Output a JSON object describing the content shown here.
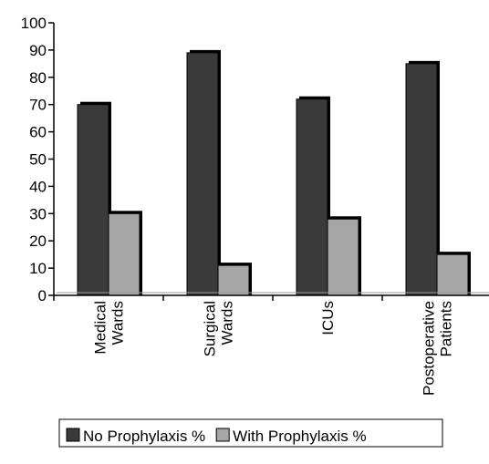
{
  "chart_data": {
    "type": "bar",
    "categories": [
      [
        "Medical",
        "Wards"
      ],
      [
        "Surgical",
        "Wards"
      ],
      [
        "ICUs"
      ],
      [
        "Postoperative",
        "Patients"
      ]
    ],
    "series": [
      {
        "name": "No Prophylaxis %",
        "values": [
          70,
          89,
          72,
          85
        ],
        "color": "#3a3a3a"
      },
      {
        "name": "With Prophylaxis %",
        "values": [
          30,
          11,
          28,
          15
        ],
        "color": "#a6a6a6"
      }
    ],
    "ylim": [
      0,
      100
    ],
    "yticks": [
      0,
      10,
      20,
      30,
      40,
      50,
      60,
      70,
      80,
      90,
      100
    ],
    "xlabel": "",
    "ylabel": "",
    "title": "",
    "legend_position": "bottom",
    "grid": false
  }
}
